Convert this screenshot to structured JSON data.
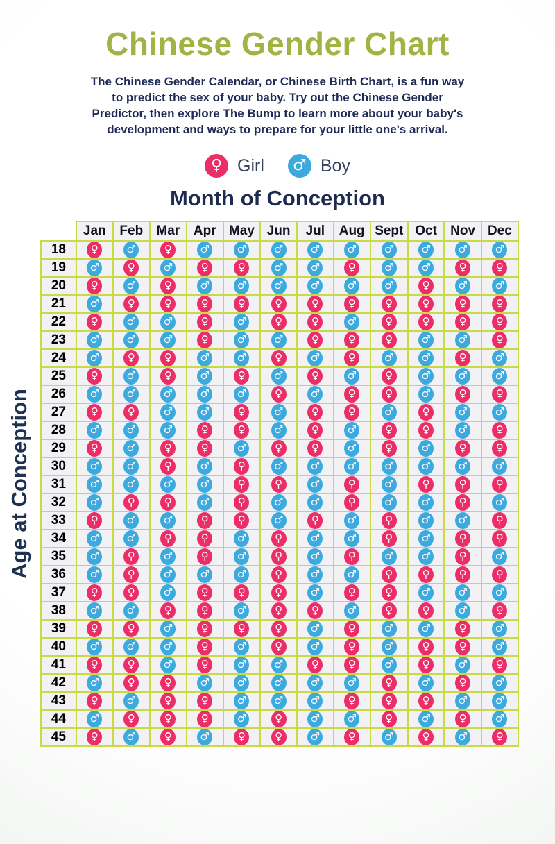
{
  "page": {
    "title": "Chinese Gender Chart",
    "description": "The Chinese Gender Calendar, or Chinese Birth Chart, is a fun way\nto predict the sex of your baby. Try out the Chinese Gender\nPredictor, then explore The Bump to learn more about your baby's\ndevelopment and ways to prepare for your little one's arrival."
  },
  "legend": {
    "items": [
      {
        "key": "G",
        "label": "Girl",
        "symbol": "♀"
      },
      {
        "key": "B",
        "label": "Boy",
        "symbol": "♂"
      }
    ]
  },
  "headings": {
    "columns_title": "Month of Conception",
    "rows_title": "Age at Conception"
  },
  "colors": {
    "girl_pink": "#ec2e68",
    "boy_blue": "#3caade",
    "grid_green": "#c9da45",
    "title_green": "#a2b243",
    "text_navy": "#1e2b56",
    "cell_bg": "#f2f2f5"
  },
  "chart_data": {
    "type": "table",
    "title": "Chinese Gender Chart",
    "xlabel": "Month of Conception",
    "ylabel": "Age at Conception",
    "legend": {
      "G": "Girl",
      "B": "Boy"
    },
    "columns": [
      "Jan",
      "Feb",
      "Mar",
      "Apr",
      "May",
      "Jun",
      "Jul",
      "Aug",
      "Sept",
      "Oct",
      "Nov",
      "Dec"
    ],
    "row_labels": [
      18,
      19,
      20,
      21,
      22,
      23,
      24,
      25,
      26,
      27,
      28,
      29,
      30,
      31,
      32,
      33,
      34,
      35,
      36,
      37,
      38,
      39,
      40,
      41,
      42,
      43,
      44,
      45
    ],
    "values": [
      [
        "G",
        "B",
        "G",
        "B",
        "B",
        "B",
        "B",
        "B",
        "B",
        "B",
        "B",
        "B"
      ],
      [
        "B",
        "G",
        "B",
        "G",
        "G",
        "B",
        "B",
        "G",
        "B",
        "B",
        "G",
        "G"
      ],
      [
        "G",
        "B",
        "G",
        "B",
        "B",
        "B",
        "B",
        "B",
        "B",
        "G",
        "B",
        "B"
      ],
      [
        "B",
        "G",
        "G",
        "G",
        "G",
        "G",
        "G",
        "G",
        "G",
        "G",
        "G",
        "G"
      ],
      [
        "G",
        "B",
        "B",
        "G",
        "B",
        "G",
        "G",
        "B",
        "G",
        "G",
        "G",
        "G"
      ],
      [
        "B",
        "B",
        "B",
        "G",
        "B",
        "B",
        "G",
        "G",
        "G",
        "B",
        "B",
        "G"
      ],
      [
        "B",
        "G",
        "G",
        "B",
        "B",
        "G",
        "B",
        "G",
        "B",
        "B",
        "G",
        "B"
      ],
      [
        "G",
        "B",
        "G",
        "B",
        "G",
        "B",
        "G",
        "B",
        "G",
        "B",
        "B",
        "B"
      ],
      [
        "B",
        "B",
        "B",
        "B",
        "B",
        "G",
        "B",
        "G",
        "G",
        "B",
        "G",
        "G"
      ],
      [
        "G",
        "G",
        "B",
        "B",
        "G",
        "B",
        "G",
        "G",
        "B",
        "G",
        "B",
        "B"
      ],
      [
        "B",
        "B",
        "B",
        "G",
        "G",
        "B",
        "G",
        "B",
        "G",
        "G",
        "B",
        "G"
      ],
      [
        "G",
        "B",
        "G",
        "G",
        "B",
        "G",
        "G",
        "B",
        "G",
        "B",
        "G",
        "G"
      ],
      [
        "B",
        "B",
        "G",
        "B",
        "G",
        "B",
        "B",
        "B",
        "B",
        "B",
        "B",
        "B"
      ],
      [
        "B",
        "B",
        "B",
        "B",
        "G",
        "G",
        "B",
        "G",
        "B",
        "G",
        "G",
        "G"
      ],
      [
        "B",
        "G",
        "G",
        "B",
        "G",
        "B",
        "B",
        "G",
        "B",
        "B",
        "G",
        "B"
      ],
      [
        "G",
        "B",
        "B",
        "G",
        "G",
        "B",
        "G",
        "B",
        "G",
        "B",
        "B",
        "G"
      ],
      [
        "B",
        "B",
        "G",
        "G",
        "B",
        "G",
        "B",
        "B",
        "G",
        "B",
        "G",
        "G"
      ],
      [
        "B",
        "G",
        "B",
        "G",
        "B",
        "G",
        "B",
        "G",
        "B",
        "B",
        "G",
        "B"
      ],
      [
        "B",
        "G",
        "B",
        "B",
        "B",
        "G",
        "B",
        "B",
        "G",
        "G",
        "G",
        "G"
      ],
      [
        "G",
        "G",
        "B",
        "G",
        "G",
        "G",
        "B",
        "G",
        "G",
        "B",
        "B",
        "B"
      ],
      [
        "B",
        "B",
        "G",
        "G",
        "B",
        "G",
        "G",
        "B",
        "G",
        "G",
        "B",
        "G"
      ],
      [
        "G",
        "G",
        "B",
        "G",
        "G",
        "G",
        "B",
        "G",
        "B",
        "B",
        "G",
        "B"
      ],
      [
        "B",
        "B",
        "B",
        "G",
        "B",
        "G",
        "B",
        "G",
        "B",
        "G",
        "G",
        "B"
      ],
      [
        "G",
        "G",
        "B",
        "G",
        "B",
        "B",
        "G",
        "G",
        "B",
        "G",
        "B",
        "G"
      ],
      [
        "B",
        "G",
        "G",
        "B",
        "B",
        "B",
        "B",
        "B",
        "G",
        "B",
        "G",
        "B"
      ],
      [
        "G",
        "B",
        "G",
        "G",
        "B",
        "B",
        "B",
        "G",
        "G",
        "G",
        "B",
        "B"
      ],
      [
        "B",
        "G",
        "G",
        "G",
        "B",
        "G",
        "B",
        "B",
        "G",
        "B",
        "G",
        "B"
      ],
      [
        "G",
        "B",
        "G",
        "B",
        "G",
        "G",
        "B",
        "G",
        "B",
        "G",
        "B",
        "G"
      ]
    ]
  }
}
